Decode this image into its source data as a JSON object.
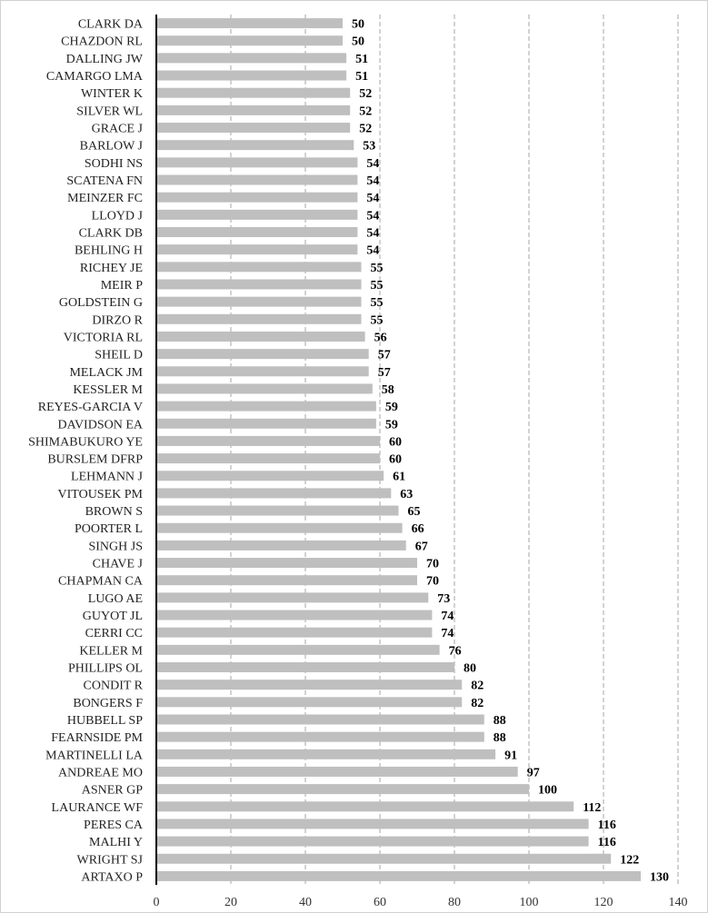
{
  "chart_data": {
    "type": "bar",
    "orientation": "horizontal",
    "title": "",
    "xlabel": "",
    "ylabel": "",
    "xlim": [
      0,
      140
    ],
    "x_ticks": [
      0,
      20,
      40,
      60,
      80,
      100,
      120,
      140
    ],
    "grid": "vertical dashed gridlines",
    "bar_color": "#bfbfbf",
    "categories": [
      "CLARK DA",
      "CHAZDON RL",
      "DALLING JW",
      "CAMARGO LMA",
      "WINTER K",
      "SILVER WL",
      "GRACE J",
      "BARLOW J",
      "SODHI NS",
      "SCATENA FN",
      "MEINZER FC",
      "LLOYD J",
      "CLARK DB",
      "BEHLING H",
      "RICHEY JE",
      "MEIR P",
      "GOLDSTEIN G",
      "DIRZO R",
      "VICTORIA RL",
      "SHEIL D",
      "MELACK JM",
      "KESSLER M",
      "REYES-GARCIA V",
      "DAVIDSON EA",
      "SHIMABUKURO YE",
      "BURSLEM DFRP",
      "LEHMANN J",
      "VITOUSEK PM",
      "BROWN S",
      "POORTER L",
      "SINGH JS",
      "CHAVE J",
      "CHAPMAN CA",
      "LUGO AE",
      "GUYOT JL",
      "CERRI CC",
      "KELLER M",
      "PHILLIPS OL",
      "CONDIT R",
      "BONGERS F",
      "HUBBELL SP",
      "FEARNSIDE PM",
      "MARTINELLI LA",
      "ANDREAE MO",
      "ASNER GP",
      "LAURANCE WF",
      "PERES CA",
      "MALHI Y",
      "WRIGHT SJ",
      "ARTAXO P"
    ],
    "values": [
      50,
      50,
      51,
      51,
      52,
      52,
      52,
      53,
      54,
      54,
      54,
      54,
      54,
      54,
      55,
      55,
      55,
      55,
      56,
      57,
      57,
      58,
      59,
      59,
      60,
      60,
      61,
      63,
      65,
      66,
      67,
      70,
      70,
      73,
      74,
      74,
      76,
      80,
      82,
      82,
      88,
      88,
      91,
      97,
      100,
      112,
      116,
      116,
      122,
      130
    ]
  }
}
